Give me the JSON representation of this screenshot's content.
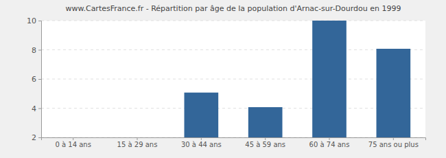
{
  "chart_data": {
    "type": "bar",
    "title": "www.CartesFrance.fr - Répartition par âge de la population d'Arnac-sur-Dourdou en 1999",
    "categories": [
      "0 à 14 ans",
      "15 à 29 ans",
      "30 à 44 ans",
      "45 à 59 ans",
      "60 à 74 ans",
      "75 ans ou plus"
    ],
    "values": [
      2,
      2,
      5,
      4,
      10,
      8
    ],
    "color": "#336699",
    "ylim": [
      2,
      10
    ],
    "yticks": [
      2,
      4,
      6,
      8,
      10
    ],
    "grid": true
  }
}
